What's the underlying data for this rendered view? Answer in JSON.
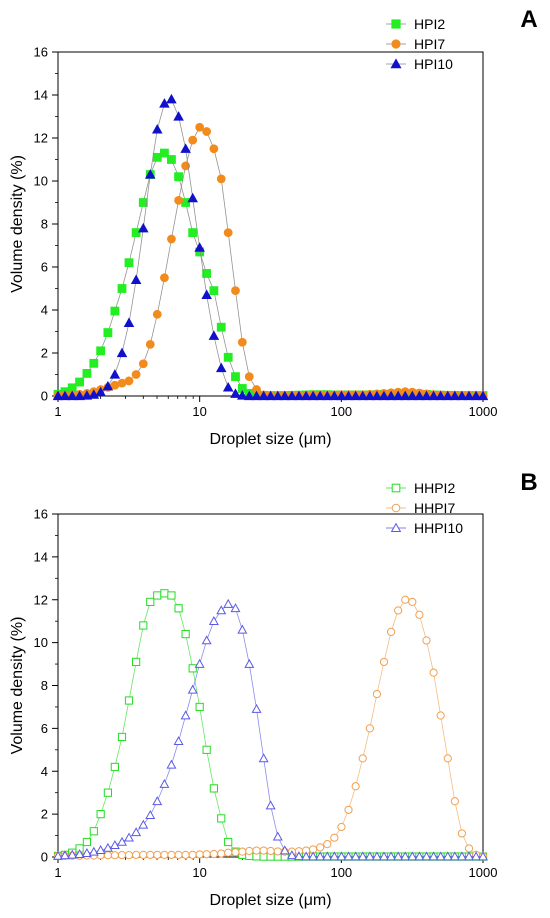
{
  "chart_data": [
    {
      "panel_label": "A",
      "type": "line",
      "xscale": "log",
      "xlim": [
        1,
        1000
      ],
      "ylim": [
        0,
        16
      ],
      "xlabel": "Droplet size (μm)",
      "ylabel": "Volume density (%)",
      "x_ticks": [
        1,
        10,
        100,
        1000
      ],
      "y_ticks": [
        0,
        2,
        4,
        6,
        8,
        10,
        12,
        14,
        16
      ],
      "legend_position": "top-right",
      "x": [
        1.0,
        1.12,
        1.26,
        1.42,
        1.6,
        1.79,
        2.0,
        2.25,
        2.52,
        2.83,
        3.17,
        3.56,
        4.0,
        4.48,
        5.02,
        5.64,
        6.32,
        7.1,
        7.96,
        8.93,
        10.0,
        11.2,
        12.6,
        14.2,
        15.9,
        17.9,
        20.0,
        22.4,
        25.2,
        28.3,
        31.7,
        35.6,
        39.9,
        44.8,
        50.2,
        56.4,
        63.2,
        70.9,
        79.6,
        89.3,
        100.2,
        112.4,
        126.2,
        141.6,
        158.9,
        178.3,
        200.0,
        224.4,
        251.8,
        282.5,
        317.0,
        355.7,
        399.1,
        447.8,
        502.5,
        563.8,
        632.6,
        709.8,
        796.4,
        893.6,
        1000.0
      ],
      "series": [
        {
          "name": "HPI2",
          "color": "#22ee22",
          "marker": "square",
          "filled": true,
          "values": [
            0.08,
            0.2,
            0.38,
            0.65,
            1.05,
            1.52,
            2.1,
            2.95,
            3.95,
            5.0,
            6.2,
            7.6,
            9.0,
            10.3,
            11.1,
            11.3,
            11.0,
            10.2,
            9.0,
            7.6,
            6.7,
            5.7,
            4.9,
            3.2,
            1.8,
            0.9,
            0.35,
            0.12,
            0.05,
            0.03,
            0.02,
            0.02,
            0.02,
            0.03,
            0.04,
            0.05,
            0.06,
            0.06,
            0.06,
            0.05,
            0.05,
            0.05,
            0.05,
            0.05,
            0.05,
            0.06,
            0.07,
            0.08,
            0.09,
            0.1,
            0.09,
            0.08,
            0.07,
            0.05,
            0.04,
            0.03,
            0.03,
            0.02,
            0.02,
            0.02,
            0.02
          ]
        },
        {
          "name": "HPI7",
          "color": "#f28b1c",
          "marker": "circle",
          "filled": true,
          "values": [
            0.02,
            0.03,
            0.05,
            0.08,
            0.12,
            0.2,
            0.3,
            0.4,
            0.5,
            0.6,
            0.7,
            1.0,
            1.5,
            2.4,
            3.8,
            5.5,
            7.3,
            9.1,
            10.7,
            11.9,
            12.5,
            12.3,
            11.5,
            10.1,
            7.6,
            4.9,
            2.5,
            0.9,
            0.3,
            0.05,
            0.02,
            0.02,
            0.02,
            0.03,
            0.03,
            0.04,
            0.05,
            0.05,
            0.05,
            0.05,
            0.06,
            0.06,
            0.06,
            0.06,
            0.08,
            0.1,
            0.12,
            0.15,
            0.18,
            0.2,
            0.18,
            0.14,
            0.1,
            0.07,
            0.05,
            0.04,
            0.04,
            0.03,
            0.03,
            0.02,
            0.02
          ]
        },
        {
          "name": "HPI10",
          "color": "#1111cc",
          "marker": "triangle",
          "filled": true,
          "values": [
            0.0,
            0.0,
            0.0,
            0.0,
            0.02,
            0.06,
            0.18,
            0.45,
            1.0,
            2.0,
            3.4,
            5.4,
            7.8,
            10.3,
            12.4,
            13.6,
            13.8,
            13.0,
            11.5,
            9.2,
            6.9,
            4.7,
            2.8,
            1.3,
            0.4,
            0.1,
            0.02,
            0.0,
            0.0,
            0.0,
            0.0,
            0.0,
            0.0,
            0.0,
            0.0,
            0.0,
            0.0,
            0.0,
            0.0,
            0.0,
            0.0,
            0.0,
            0.0,
            0.0,
            0.0,
            0.0,
            0.0,
            0.0,
            0.0,
            0.0,
            0.0,
            0.0,
            0.0,
            0.0,
            0.0,
            0.0,
            0.0,
            0.0,
            0.0,
            0.0,
            0.0
          ]
        }
      ]
    },
    {
      "panel_label": "B",
      "type": "line",
      "xscale": "log",
      "xlim": [
        1,
        1000
      ],
      "ylim": [
        0,
        16
      ],
      "xlabel": "Droplet size (μm)",
      "ylabel": "Volume density (%)",
      "x_ticks": [
        1,
        10,
        100,
        1000
      ],
      "y_ticks": [
        0,
        2,
        4,
        6,
        8,
        10,
        12,
        14,
        16
      ],
      "legend_position": "top-right",
      "x": [
        1.0,
        1.12,
        1.26,
        1.42,
        1.6,
        1.79,
        2.0,
        2.25,
        2.52,
        2.83,
        3.17,
        3.56,
        4.0,
        4.48,
        5.02,
        5.64,
        6.32,
        7.1,
        7.96,
        8.93,
        10.0,
        11.2,
        12.6,
        14.2,
        15.9,
        17.9,
        20.0,
        22.4,
        25.2,
        28.3,
        31.7,
        35.6,
        39.9,
        44.8,
        50.2,
        56.4,
        63.2,
        70.9,
        79.6,
        89.3,
        100.2,
        112.4,
        126.2,
        141.6,
        158.9,
        178.3,
        200.0,
        224.4,
        251.8,
        282.5,
        317.0,
        355.7,
        399.1,
        447.8,
        502.5,
        563.8,
        632.6,
        709.8,
        796.4,
        893.6,
        1000.0
      ],
      "series": [
        {
          "name": "HHPI2",
          "color": "#22dd22",
          "marker": "square",
          "filled": false,
          "values": [
            0.05,
            0.1,
            0.2,
            0.4,
            0.7,
            1.2,
            2.0,
            3.0,
            4.2,
            5.6,
            7.3,
            9.1,
            10.8,
            11.9,
            12.2,
            12.3,
            12.2,
            11.6,
            10.4,
            8.8,
            7.0,
            5.0,
            3.2,
            1.8,
            0.7,
            0.25,
            0.1,
            0.05,
            0.03,
            0.02,
            0.02,
            0.02,
            0.02,
            0.02,
            0.02,
            0.02,
            0.02,
            0.02,
            0.02,
            0.02,
            0.02,
            0.02,
            0.02,
            0.02,
            0.02,
            0.02,
            0.02,
            0.02,
            0.02,
            0.02,
            0.02,
            0.02,
            0.02,
            0.02,
            0.02,
            0.02,
            0.02,
            0.02,
            0.02,
            0.02,
            0.02
          ]
        },
        {
          "name": "HHPI7",
          "color": "#f0a050",
          "marker": "circle",
          "filled": false,
          "values": [
            0.05,
            0.05,
            0.06,
            0.06,
            0.07,
            0.07,
            0.08,
            0.08,
            0.08,
            0.09,
            0.09,
            0.1,
            0.1,
            0.1,
            0.1,
            0.1,
            0.1,
            0.1,
            0.1,
            0.1,
            0.12,
            0.13,
            0.14,
            0.16,
            0.2,
            0.22,
            0.25,
            0.28,
            0.3,
            0.3,
            0.28,
            0.26,
            0.25,
            0.25,
            0.27,
            0.3,
            0.35,
            0.45,
            0.6,
            0.9,
            1.4,
            2.2,
            3.3,
            4.6,
            6.0,
            7.6,
            9.1,
            10.5,
            11.5,
            12.0,
            11.9,
            11.3,
            10.1,
            8.6,
            6.6,
            4.6,
            2.6,
            1.1,
            0.4,
            0.1,
            0.03
          ]
        },
        {
          "name": "HHPI10",
          "color": "#5a5ae6",
          "marker": "triangle",
          "filled": false,
          "values": [
            0.05,
            0.07,
            0.1,
            0.13,
            0.18,
            0.24,
            0.32,
            0.42,
            0.55,
            0.7,
            0.9,
            1.15,
            1.5,
            1.95,
            2.6,
            3.4,
            4.3,
            5.4,
            6.6,
            7.8,
            9.0,
            10.1,
            11.0,
            11.5,
            11.8,
            11.6,
            10.6,
            9.0,
            6.9,
            4.6,
            2.4,
            0.95,
            0.3,
            0.08,
            0.03,
            0.02,
            0.02,
            0.02,
            0.02,
            0.02,
            0.02,
            0.02,
            0.02,
            0.02,
            0.02,
            0.02,
            0.02,
            0.02,
            0.02,
            0.02,
            0.02,
            0.02,
            0.02,
            0.02,
            0.02,
            0.02,
            0.02,
            0.02,
            0.02,
            0.02,
            0.02
          ]
        }
      ]
    }
  ]
}
